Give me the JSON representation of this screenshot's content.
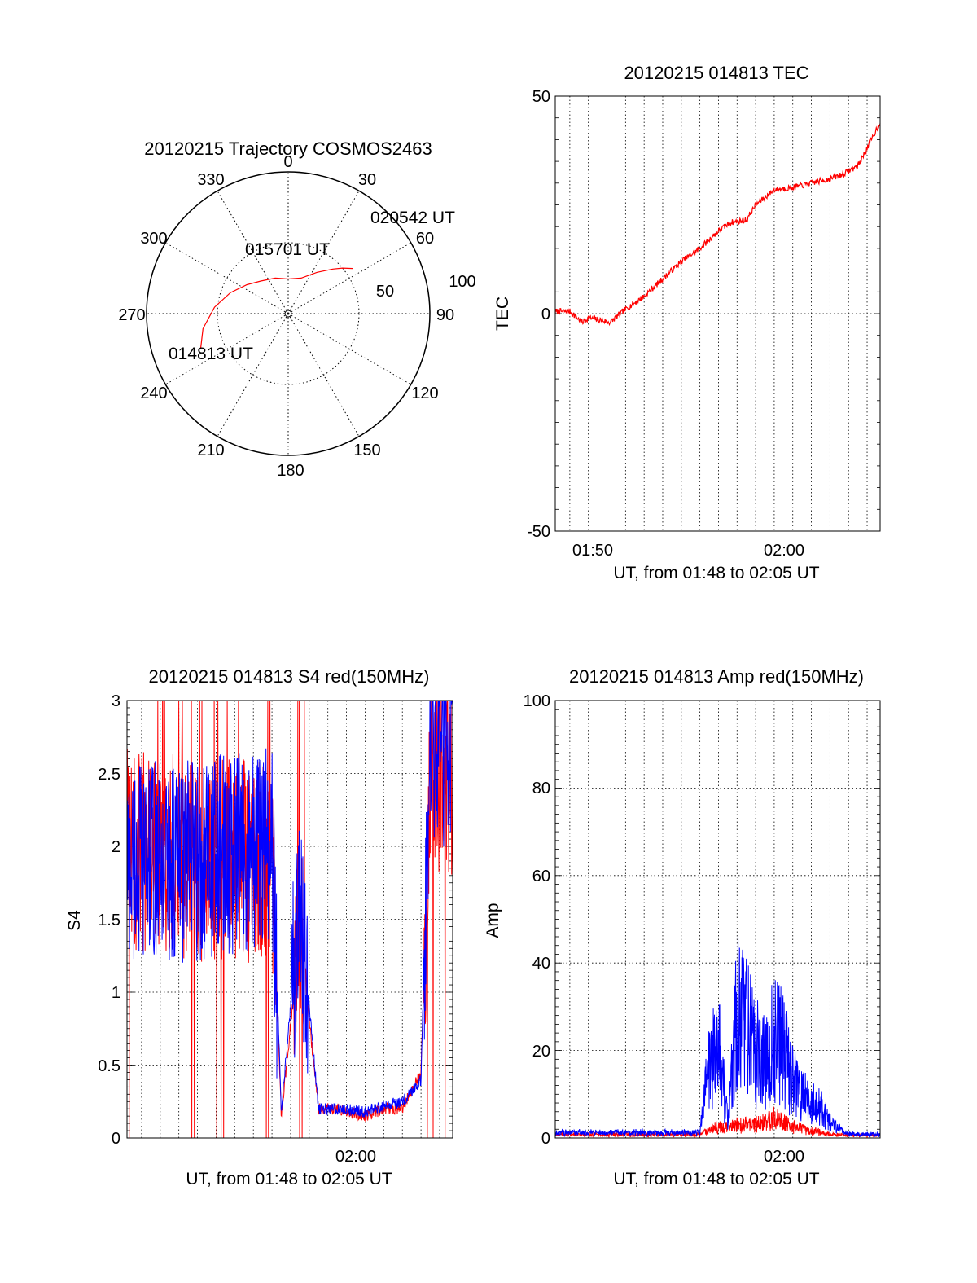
{
  "polar": {
    "title": "20120215 Trajectory COSMOS2463",
    "azimuth_labels": [
      "0",
      "30",
      "60",
      "90",
      "120",
      "150",
      "180",
      "210",
      "240",
      "270",
      "300",
      "330"
    ],
    "radial_labels": [
      "50",
      "100"
    ],
    "annotations": [
      "014813 UT",
      "015701 UT",
      "020542 UT"
    ],
    "colors": {
      "trajectory": "#ff0000"
    },
    "chart_data": {
      "type": "scatter",
      "title": "20120215 Trajectory COSMOS2463",
      "coordinate_system": "polar (azimuth deg clockwise from north, zenith angle deg; center = 0, rim = 90)",
      "series": [
        {
          "color": "#ff0000",
          "points": [
            [
              248,
              60
            ],
            [
              260,
              55
            ],
            [
              275,
              47
            ],
            [
              290,
              39
            ],
            [
              305,
              32
            ],
            [
              320,
              27
            ],
            [
              340,
              24
            ],
            [
              0,
              22
            ],
            [
              20,
              24
            ],
            [
              35,
              32
            ],
            [
              45,
              40
            ],
            [
              50,
              45
            ],
            [
              55,
              50
            ]
          ]
        }
      ],
      "annotations": [
        {
          "text": "014813 UT",
          "at": [
            248,
            60
          ]
        },
        {
          "text": "015701 UT",
          "at": [
            320,
            27
          ]
        },
        {
          "text": "020542 UT",
          "at": [
            55,
            50
          ]
        }
      ]
    }
  },
  "tec": {
    "title": "20120215 014813 TEC",
    "ylabel": "TEC",
    "xlabel": "UT, from 01:48 to 02:05 UT",
    "yticks": [
      "50",
      "0",
      "-50"
    ],
    "xticks": [
      "01:50",
      "02:00"
    ],
    "colors": {
      "line": "#ff0000"
    },
    "chart_data": {
      "type": "line",
      "title": "20120215 014813 TEC",
      "xlabel": "UT, from 01:48 to 02:05 UT",
      "ylabel": "TEC",
      "xlim": [
        "01:48:13",
        "02:05:42"
      ],
      "ylim": [
        -50,
        50
      ],
      "grid": true,
      "series": [
        {
          "color": "#ff0000",
          "x": [
            "01:48:13",
            "01:49:00",
            "01:49:40",
            "01:50:00",
            "01:50:40",
            "01:51:10",
            "01:52:00",
            "01:53:00",
            "01:54:00",
            "01:55:00",
            "01:56:00",
            "01:57:00",
            "01:57:40",
            "01:58:30",
            "01:59:00",
            "02:00:00",
            "02:01:00",
            "02:02:00",
            "02:03:00",
            "02:03:40",
            "02:04:30",
            "02:05:00",
            "02:05:42"
          ],
          "y": [
            0.5,
            0.5,
            -2,
            -1,
            -1.5,
            -2,
            1,
            4,
            8,
            12,
            15,
            19,
            21,
            21.5,
            25,
            28.5,
            29,
            30,
            31,
            32,
            34,
            38,
            44
          ]
        }
      ]
    }
  },
  "s4": {
    "title": "20120215 014813 S4 red(150MHz)",
    "ylabel": "S4",
    "xlabel": "UT, from 01:48 to 02:05 UT",
    "yticks": [
      "3",
      "2.5",
      "2",
      "1.5",
      "1",
      "0.5",
      "0"
    ],
    "xticks": [
      "02:00"
    ],
    "colors": {
      "red": "#ff0000",
      "blue": "#0000ff"
    },
    "chart_data": {
      "type": "line",
      "title": "20120215 014813 S4 red(150MHz)",
      "xlabel": "UT, from 01:48 to 02:05 UT",
      "ylabel": "S4",
      "xlim": [
        "01:48:13",
        "02:05:42"
      ],
      "ylim": [
        0,
        3
      ],
      "grid": true,
      "series": [
        {
          "color": "#ff0000",
          "x": [
            "01:48:13",
            "01:52:00",
            "01:56:00",
            "01:56:30",
            "01:57:30",
            "01:58:30",
            "01:59:30",
            "02:01:00",
            "02:02:00",
            "02:03:00",
            "02:04:00",
            "02:04:30",
            "02:05:42"
          ],
          "y": [
            2.0,
            1.9,
            1.9,
            0.15,
            1.4,
            0.2,
            0.2,
            0.15,
            0.2,
            0.2,
            0.45,
            2.6,
            2.4
          ]
        },
        {
          "color": "#0000ff",
          "x": [
            "01:48:13",
            "01:52:00",
            "01:56:00",
            "01:56:30",
            "01:57:30",
            "01:58:30",
            "01:59:30",
            "02:01:00",
            "02:02:00",
            "02:03:00",
            "02:04:00",
            "02:04:30",
            "02:05:42"
          ],
          "y": [
            1.9,
            1.9,
            2.0,
            0.2,
            1.6,
            0.2,
            0.2,
            0.18,
            0.22,
            0.25,
            0.4,
            2.8,
            2.6
          ]
        }
      ]
    }
  },
  "amp": {
    "title": "20120215 014813 Amp red(150MHz)",
    "ylabel": "Amp",
    "xlabel": "UT, from 01:48 to 02:05 UT",
    "yticks": [
      "100",
      "80",
      "60",
      "40",
      "20",
      "0"
    ],
    "xticks": [
      "02:00"
    ],
    "colors": {
      "red": "#ff0000",
      "blue": "#0000ff"
    },
    "chart_data": {
      "type": "line",
      "title": "20120215 014813 Amp red(150MHz)",
      "xlabel": "UT, from 01:48 to 02:05 UT",
      "ylabel": "Amp",
      "xlim": [
        "01:48:13",
        "02:05:42"
      ],
      "ylim": [
        0,
        100
      ],
      "grid": true,
      "series": [
        {
          "color": "#ff0000",
          "x": [
            "01:48:13",
            "01:56:00",
            "01:56:30",
            "01:57:30",
            "01:58:30",
            "01:59:30",
            "02:00:00",
            "02:01:00",
            "02:02:00",
            "02:03:00",
            "02:04:00",
            "02:05:42"
          ],
          "y": [
            0.5,
            0.5,
            2,
            3,
            3,
            4,
            5,
            3,
            1.5,
            0.5,
            0.3,
            0.3
          ]
        },
        {
          "color": "#0000ff",
          "x": [
            "01:48:13",
            "01:56:00",
            "01:56:30",
            "01:57:00",
            "01:57:30",
            "01:58:00",
            "01:58:30",
            "01:59:00",
            "01:59:30",
            "02:00:00",
            "02:00:30",
            "02:01:00",
            "02:01:30",
            "02:02:00",
            "02:02:30",
            "02:03:00",
            "02:04:00",
            "02:05:42"
          ],
          "y": [
            1,
            1,
            20,
            25,
            5,
            35,
            30,
            25,
            20,
            28,
            25,
            15,
            12,
            10,
            8,
            4,
            0.5,
            0.5
          ]
        }
      ]
    }
  }
}
